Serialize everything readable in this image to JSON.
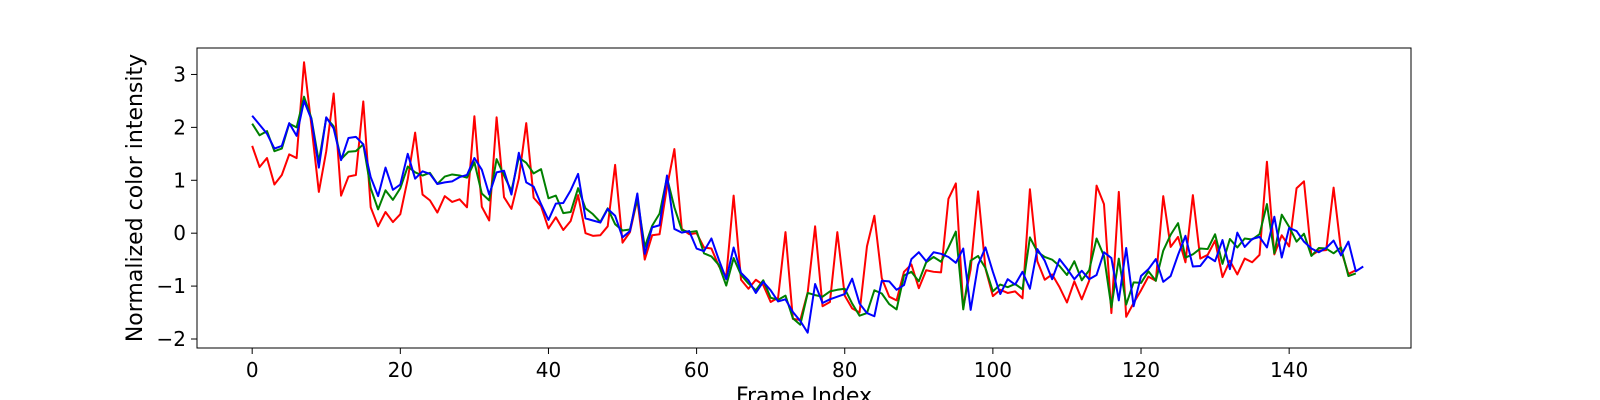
{
  "chart_data": {
    "type": "line",
    "title": "",
    "xlabel": "Frame Index",
    "ylabel": "Normalized color intensity",
    "xlim": [
      -7.45,
      156.45
    ],
    "ylim": [
      -2.17,
      3.5
    ],
    "xticks": [
      0,
      20,
      40,
      60,
      80,
      100,
      120,
      140
    ],
    "yticks": [
      -2,
      -1,
      0,
      1,
      2,
      3
    ],
    "grid": false,
    "legend": "none",
    "series": [
      {
        "color": "#ff0000",
        "values": [
          1.65,
          1.25,
          1.42,
          0.92,
          1.1,
          1.49,
          1.42,
          3.23,
          2.03,
          0.78,
          1.55,
          2.64,
          0.71,
          1.07,
          1.1,
          2.49,
          0.49,
          0.13,
          0.4,
          0.21,
          0.36,
          1.02,
          1.9,
          0.73,
          0.62,
          0.39,
          0.7,
          0.59,
          0.64,
          0.49,
          2.21,
          0.5,
          0.24,
          2.19,
          0.68,
          0.46,
          1.03,
          2.08,
          0.67,
          0.51,
          0.09,
          0.3,
          0.06,
          0.23,
          0.72,
          0.0,
          -0.05,
          -0.04,
          0.13,
          1.29,
          -0.18,
          0.02,
          0.64,
          -0.5,
          -0.04,
          -0.02,
          0.87,
          1.59,
          0.08,
          -0.02,
          0.0,
          -0.27,
          -0.29,
          -0.62,
          -0.82,
          0.71,
          -0.88,
          -1.05,
          -0.88,
          -0.98,
          -1.3,
          -1.22,
          0.02,
          -1.62,
          -1.64,
          -1.12,
          0.13,
          -1.38,
          -1.3,
          0.02,
          -1.18,
          -1.42,
          -1.5,
          -0.25,
          0.33,
          -0.85,
          -1.2,
          -1.27,
          -0.73,
          -0.59,
          -1.04,
          -0.7,
          -0.73,
          -0.74,
          0.65,
          0.94,
          -1.4,
          -0.68,
          0.79,
          -0.67,
          -1.19,
          -1.07,
          -1.13,
          -1.1,
          -1.23,
          0.83,
          -0.53,
          -0.88,
          -0.78,
          -1.02,
          -1.31,
          -0.91,
          -1.25,
          -0.9,
          0.9,
          0.55,
          -1.51,
          0.78,
          -1.58,
          -1.32,
          -1.08,
          -0.82,
          -0.9,
          0.7,
          -0.26,
          -0.07,
          -0.55,
          0.72,
          -0.48,
          -0.41,
          -0.14,
          -0.83,
          -0.52,
          -0.78,
          -0.48,
          -0.55,
          -0.41,
          1.35,
          -0.4,
          -0.04,
          -0.25,
          0.85,
          0.98,
          -0.42,
          -0.33,
          -0.32,
          0.86,
          -0.32,
          -0.77,
          -0.7
        ]
      },
      {
        "color": "#008000",
        "values": [
          2.07,
          1.85,
          1.93,
          1.55,
          1.6,
          2.07,
          2.0,
          2.58,
          2.17,
          1.35,
          2.18,
          2.02,
          1.4,
          1.54,
          1.55,
          1.68,
          0.85,
          0.45,
          0.81,
          0.63,
          0.85,
          1.26,
          1.15,
          1.09,
          1.14,
          0.93,
          1.07,
          1.11,
          1.09,
          1.05,
          1.34,
          0.75,
          0.62,
          1.4,
          1.09,
          0.8,
          1.43,
          1.33,
          1.13,
          1.21,
          0.66,
          0.71,
          0.38,
          0.4,
          0.85,
          0.47,
          0.36,
          0.21,
          0.47,
          0.17,
          0.05,
          0.07,
          0.66,
          -0.26,
          0.14,
          0.37,
          1.05,
          0.49,
          0.06,
          0.02,
          0.04,
          -0.38,
          -0.44,
          -0.6,
          -0.99,
          -0.47,
          -0.79,
          -0.95,
          -1.08,
          -0.89,
          -1.22,
          -1.26,
          -1.18,
          -1.61,
          -1.73,
          -1.13,
          -1.17,
          -1.2,
          -1.1,
          -1.07,
          -1.05,
          -1.33,
          -1.56,
          -1.51,
          -1.08,
          -1.14,
          -1.34,
          -1.44,
          -0.8,
          -0.73,
          -0.91,
          -0.55,
          -0.45,
          -0.54,
          -0.27,
          0.03,
          -1.44,
          -0.52,
          -0.43,
          -0.66,
          -1.1,
          -0.97,
          -1.02,
          -0.96,
          -1.06,
          -0.08,
          -0.35,
          -0.45,
          -0.5,
          -0.62,
          -0.79,
          -0.53,
          -0.89,
          -0.7,
          -0.1,
          -0.43,
          -1.4,
          -0.48,
          -1.35,
          -0.93,
          -0.94,
          -0.72,
          -0.9,
          -0.33,
          -0.03,
          0.19,
          -0.46,
          -0.4,
          -0.29,
          -0.3,
          -0.02,
          -0.58,
          -0.11,
          -0.27,
          -0.1,
          -0.12,
          -0.02,
          0.55,
          -0.38,
          0.35,
          0.12,
          -0.16,
          -0.01,
          -0.43,
          -0.28,
          -0.29,
          -0.38,
          -0.27,
          -0.81,
          -0.76
        ]
      },
      {
        "color": "#0000ff",
        "values": [
          2.22,
          2.05,
          1.88,
          1.6,
          1.65,
          2.08,
          1.84,
          2.5,
          2.15,
          1.24,
          2.19,
          1.98,
          1.38,
          1.8,
          1.82,
          1.68,
          1.06,
          0.7,
          1.24,
          0.82,
          0.92,
          1.5,
          1.03,
          1.17,
          1.12,
          0.93,
          0.96,
          0.98,
          1.06,
          1.1,
          1.42,
          1.2,
          0.73,
          1.15,
          1.18,
          0.73,
          1.52,
          0.96,
          0.88,
          0.55,
          0.25,
          0.56,
          0.57,
          0.81,
          1.12,
          0.28,
          0.24,
          0.2,
          0.46,
          0.33,
          -0.08,
          0.04,
          0.75,
          -0.39,
          0.11,
          0.15,
          1.09,
          0.08,
          0.01,
          0.04,
          -0.29,
          -0.34,
          -0.1,
          -0.5,
          -0.87,
          -0.27,
          -0.75,
          -0.89,
          -1.13,
          -0.92,
          -1.08,
          -1.29,
          -1.25,
          -1.49,
          -1.66,
          -1.88,
          -0.96,
          -1.32,
          -1.25,
          -1.2,
          -1.15,
          -0.86,
          -1.33,
          -1.51,
          -1.57,
          -0.9,
          -0.91,
          -1.07,
          -0.98,
          -0.49,
          -0.36,
          -0.53,
          -0.36,
          -0.39,
          -0.45,
          -0.56,
          -0.29,
          -1.45,
          -0.6,
          -0.27,
          -0.73,
          -1.15,
          -0.87,
          -0.97,
          -0.73,
          -1.05,
          -0.3,
          -0.52,
          -0.87,
          -0.49,
          -0.67,
          -0.87,
          -0.71,
          -0.87,
          -0.79,
          -0.36,
          -0.47,
          -1.27,
          -0.28,
          -1.38,
          -0.81,
          -0.68,
          -0.49,
          -0.92,
          -0.81,
          -0.41,
          -0.05,
          -0.63,
          -0.62,
          -0.44,
          -0.53,
          -0.13,
          -0.68,
          0.01,
          -0.26,
          -0.11,
          -0.07,
          -0.27,
          0.31,
          -0.46,
          0.1,
          0.04,
          -0.16,
          -0.29,
          -0.36,
          -0.28,
          -0.14,
          -0.42,
          -0.16,
          -0.72,
          -0.63
        ]
      }
    ]
  }
}
